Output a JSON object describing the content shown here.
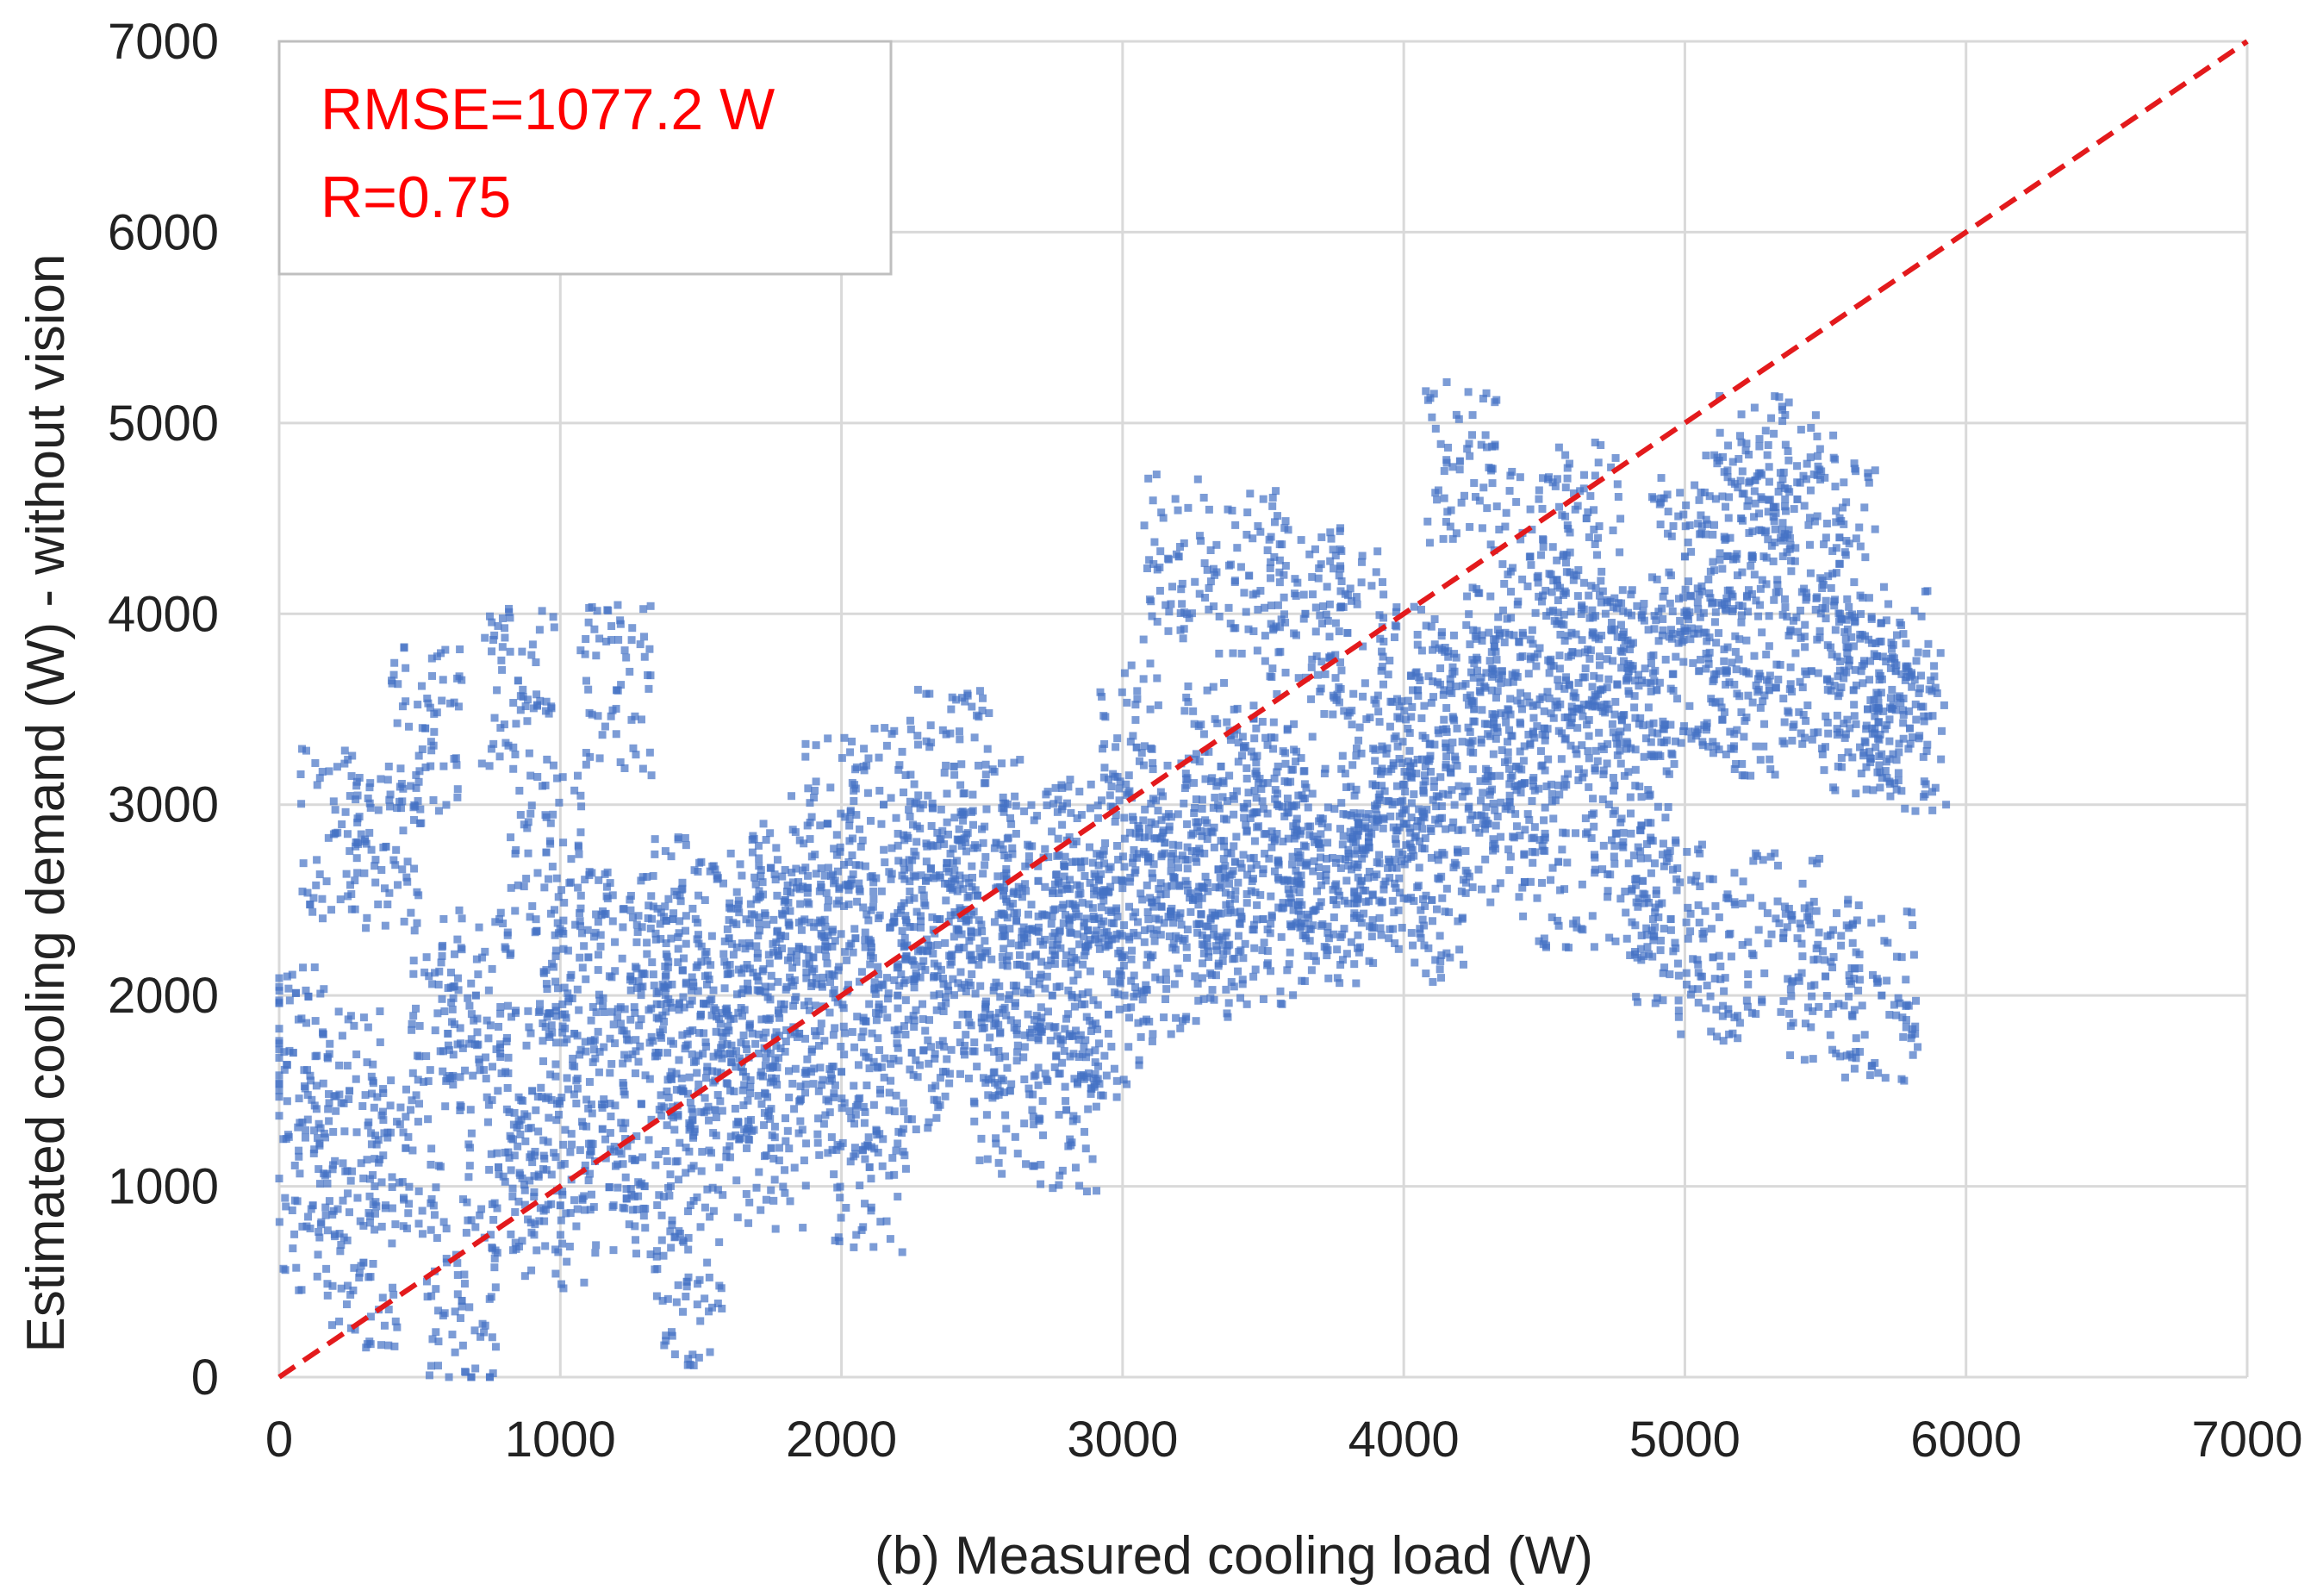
{
  "chart_data": {
    "type": "scatter",
    "title": "",
    "xlabel": "(b) Measured cooling load  (W)",
    "ylabel": "Estimated cooling demand  (W) - without vision",
    "xlim": [
      0,
      7000
    ],
    "ylim": [
      0,
      7000
    ],
    "xticks": [
      "0",
      "1000",
      "2000",
      "3000",
      "4000",
      "5000",
      "6000",
      "7000"
    ],
    "yticks": [
      "0",
      "1000",
      "2000",
      "3000",
      "4000",
      "5000",
      "6000",
      "7000"
    ],
    "grid": true,
    "legend": "none",
    "annotations": [
      "RMSE=1077.2  W",
      "R=0.75"
    ],
    "annotation_position": "top-left",
    "reference_line": {
      "name": "y = x",
      "style": "dashed",
      "color": "#e31a1c",
      "x": [
        0,
        7000
      ],
      "y": [
        0,
        7000
      ]
    },
    "point_color": "#4472c4",
    "series": [
      {
        "description_points_sample": true,
        "x": [
          50,
          120,
          200,
          250,
          300,
          380,
          450,
          520,
          600,
          650,
          700,
          780,
          850,
          900,
          950,
          1000,
          1050,
          1100,
          1150,
          1200,
          1250,
          1300,
          1350,
          1400,
          1450,
          1500,
          1550,
          1600,
          1650,
          1700,
          1750,
          1800,
          1850,
          1900,
          1950,
          2000,
          2050,
          2100,
          2150,
          2200,
          2250,
          2300,
          2350,
          2400,
          2450,
          2500,
          2550,
          2600,
          2650,
          2700,
          2750,
          2800,
          2850,
          2900,
          2950,
          3000,
          3050,
          3100,
          3150,
          3200,
          3250,
          3300,
          3350,
          3400,
          3450,
          3500,
          3550,
          3600,
          3650,
          3700,
          3750,
          3800,
          3850,
          3900,
          3950,
          4000,
          4050,
          4100,
          4150,
          4200,
          4250,
          4300,
          4350,
          4400,
          4450,
          4500,
          4550,
          4600,
          4650,
          4700,
          4750,
          4800,
          4850,
          4900,
          4950,
          5000,
          5050,
          5100,
          5150,
          5200,
          5250,
          5300,
          5350,
          5400,
          5450,
          5500,
          5550,
          5600,
          5650,
          5700,
          5750,
          5800
        ],
        "y": [
          1700,
          900,
          2850,
          1500,
          600,
          2780,
          1200,
          3400,
          1800,
          400,
          2000,
          1100,
          3650,
          1500,
          2750,
          900,
          1800,
          2200,
          1300,
          3600,
          2100,
          1000,
          1700,
          2400,
          500,
          1900,
          1400,
          2300,
          1600,
          2100,
          1200,
          2500,
          1800,
          2200,
          2900,
          1600,
          2300,
          1100,
          3000,
          2000,
          1700,
          2600,
          2400,
          3200,
          1900,
          2200,
          2800,
          1500,
          2300,
          2600,
          2000,
          1400,
          2700,
          2400,
          1900,
          2600,
          3300,
          2200,
          2800,
          4300,
          2500,
          2300,
          3200,
          2700,
          4200,
          2400,
          3000,
          2600,
          4000,
          2800,
          2500,
          3900,
          2600,
          3100,
          2700,
          2900,
          3600,
          2500,
          3300,
          4800,
          3500,
          2900,
          3700,
          3200,
          4300,
          3400,
          2700,
          3800,
          4500,
          3600,
          3100,
          3700,
          2600,
          3600,
          2400,
          4300,
          3700,
          2200,
          3700,
          4500,
          4700,
          3600,
          2300,
          4600,
          3700,
          2100,
          4400,
          3600,
          3500,
          2000,
          3700,
          3400
        ],
        "values": [
          1700,
          900,
          2850,
          1500,
          600,
          2780,
          1200,
          3400,
          1800,
          400,
          2000,
          1100,
          3650,
          1500,
          2750,
          900,
          1800,
          2200,
          1300,
          3600,
          2100,
          1000,
          1700,
          2400,
          500,
          1900,
          1400,
          2300,
          1600,
          2100,
          1200,
          2500,
          1800,
          2200,
          2900,
          1600,
          2300,
          1100,
          3000,
          2000,
          1700,
          2600,
          2400,
          3200,
          1900,
          2200,
          2800,
          1500,
          2300,
          2600,
          2000,
          1400,
          2700,
          2400,
          1900,
          2600,
          3300,
          2200,
          2800,
          4300,
          2500,
          2300,
          3200,
          2700,
          4200,
          2400,
          3000,
          2600,
          4000,
          2800,
          2500,
          3900,
          2600,
          3100,
          2700,
          2900,
          3600,
          2500,
          3300,
          4800,
          3500,
          2900,
          3700,
          3200,
          4300,
          3400,
          2700,
          3800,
          4500,
          3600,
          3100,
          3700,
          2600,
          3600,
          2400,
          4300,
          3700,
          2200,
          3700,
          4500,
          4700,
          3600,
          2300,
          4600,
          3700,
          2100,
          4400,
          3600,
          3500,
          2000,
          3700,
          3400
        ]
      }
    ]
  }
}
